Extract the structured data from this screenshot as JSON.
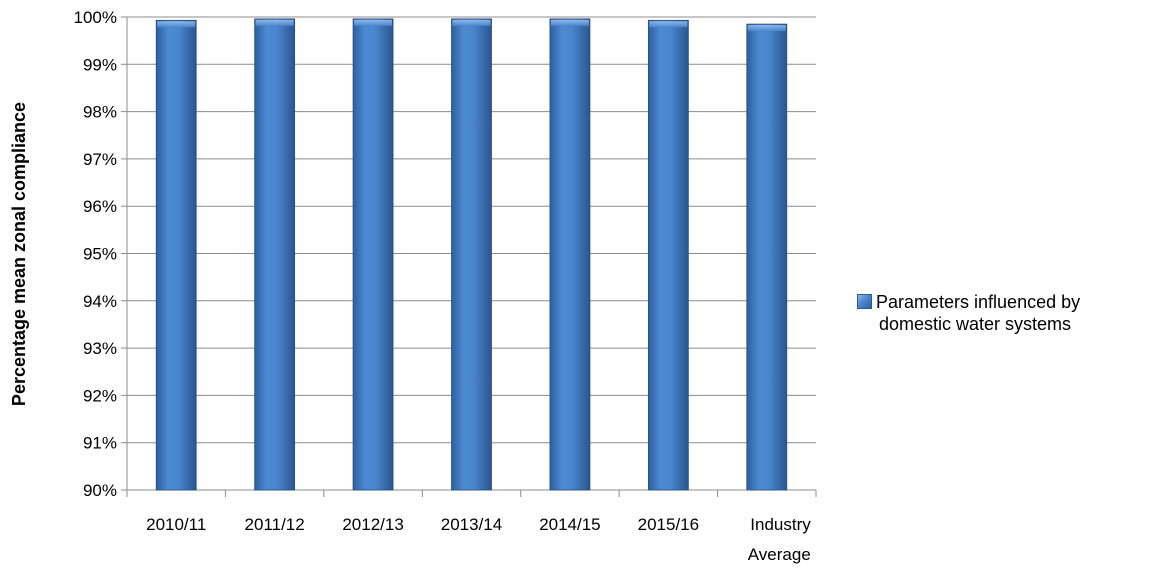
{
  "chart_data": {
    "type": "bar",
    "categories": [
      [
        "2010/11"
      ],
      [
        "2011/12"
      ],
      [
        "2012/13"
      ],
      [
        "2013/14"
      ],
      [
        "2014/15"
      ],
      [
        "2015/16"
      ],
      [
        "Industry",
        "Average"
      ]
    ],
    "series": [
      {
        "name": "Parameters influenced by domestic water systems",
        "name_lines": [
          "Parameters influenced by",
          "domestic water systems"
        ],
        "values": [
          99.93,
          99.96,
          99.96,
          99.96,
          99.96,
          99.93,
          99.85
        ],
        "color": "#4a86cf"
      }
    ],
    "ylabel": "Percentage mean zonal compliance",
    "xlabel": "",
    "ylim": [
      90,
      100
    ],
    "yticks": [
      "90%",
      "91%",
      "92%",
      "93%",
      "94%",
      "95%",
      "96%",
      "97%",
      "98%",
      "99%",
      "100%"
    ],
    "grid": true,
    "legend": "right"
  }
}
